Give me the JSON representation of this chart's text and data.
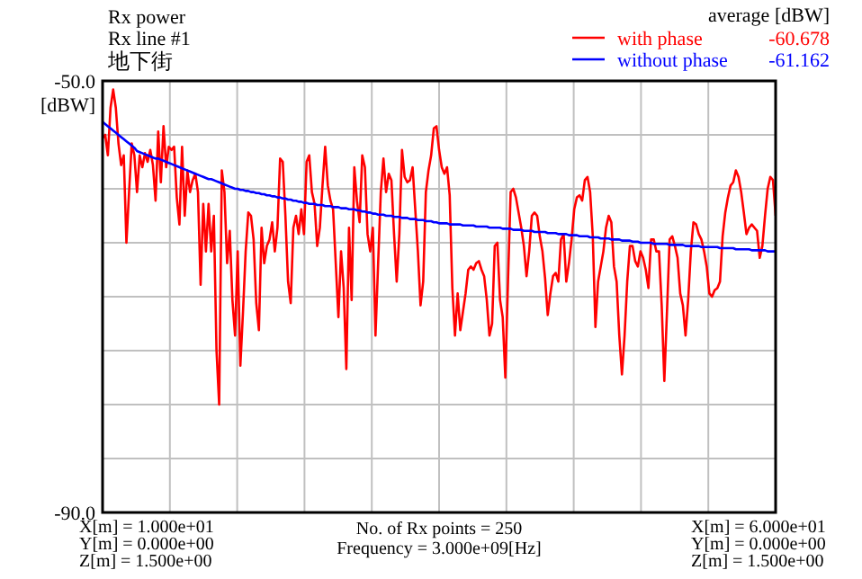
{
  "chart_data": {
    "type": "line",
    "title": "Rx power",
    "subtitle": "Rx line #1",
    "ylabel": "[dBW]",
    "legend_title": "average [dBW]",
    "legend": "top right",
    "grid": true,
    "tick_labels": "y",
    "categories": [
      null,
      null,
      null,
      null,
      null,
      null,
      null,
      null,
      null,
      null,
      null,
      null,
      null,
      null,
      null,
      null,
      null,
      null,
      null,
      null,
      null,
      null,
      null,
      null,
      null,
      null,
      null,
      null,
      null,
      null,
      null,
      null,
      null,
      null,
      null,
      null,
      null,
      null,
      null,
      null,
      null,
      null,
      null,
      null,
      null,
      null,
      null,
      null,
      null,
      null,
      null,
      null,
      null,
      null,
      null,
      null,
      null,
      null,
      null,
      null,
      null,
      null,
      null,
      null,
      null,
      null,
      null,
      null,
      null,
      null,
      null,
      null,
      null,
      null,
      null,
      null,
      null,
      null,
      null,
      null,
      null,
      null,
      null,
      null,
      null,
      null,
      null,
      null,
      null,
      null,
      null,
      null,
      null,
      null,
      null,
      null,
      null,
      null,
      null,
      null,
      null,
      null,
      null,
      null,
      null,
      null,
      null,
      null,
      null,
      null,
      null,
      null,
      null,
      null,
      null,
      null,
      null,
      null,
      null,
      null,
      null,
      null,
      null,
      null,
      null,
      null,
      null,
      null,
      null,
      null,
      null,
      null,
      null,
      null,
      null,
      null,
      null,
      null,
      null,
      null,
      null,
      null,
      null,
      null,
      null,
      null,
      null,
      null,
      null,
      null,
      null,
      null,
      null,
      null,
      null,
      null,
      null,
      null,
      null,
      null,
      null,
      null,
      null,
      null,
      null,
      null,
      null,
      null,
      null,
      null,
      null,
      null,
      null,
      null,
      null,
      null,
      null,
      null,
      null,
      null,
      null,
      null,
      null,
      null,
      null,
      null,
      null,
      null,
      null,
      null,
      null,
      null,
      null,
      null,
      null,
      null,
      null,
      null,
      null,
      null,
      null,
      null,
      null,
      null,
      null,
      null,
      null,
      null,
      null,
      null,
      null,
      null,
      null,
      null,
      null,
      null,
      null,
      null,
      null,
      null,
      null,
      null,
      null,
      null,
      null,
      null,
      null,
      null,
      null,
      null,
      null,
      null,
      null,
      null,
      null,
      null,
      null,
      null,
      null,
      null,
      null,
      null,
      null,
      null,
      null,
      null,
      null,
      null,
      null,
      null,
      null,
      null,
      null,
      null,
      null
    ],
    "ylim": [
      -90,
      -50
    ],
    "yticks": [
      {
        "value": -50,
        "label": "-50.0"
      },
      {
        "value": -55,
        "label": null
      },
      {
        "value": -60,
        "label": null
      },
      {
        "value": -65,
        "label": null
      },
      {
        "value": -70,
        "label": null
      },
      {
        "value": -75,
        "label": null
      },
      {
        "value": -80,
        "label": null
      },
      {
        "value": -85,
        "label": null
      },
      {
        "value": -90,
        "label": "-90.0"
      }
    ],
    "annotations": [
      "地下街",
      "X[m] = 1.000e+01",
      "Y[m] = 0.000e+00",
      "Z[m] = 1.500e+00",
      "No. of Rx points = 250",
      "Frequency = 3.000e+09[Hz]",
      "X[m] = 6.000e+01",
      "Y[m] = 0.000e+00",
      "Z[m] = 1.500e+00",
      "-60.678",
      "-61.162"
    ],
    "series": [
      {
        "name": "with phase",
        "color": "#ff0000",
        "values": [
          -55.3,
          -55.0,
          -56.9,
          -52.5,
          -50.8,
          -52.5,
          -55.8,
          -57.8,
          -56.9,
          -65.0,
          -60.3,
          -55.8,
          -56.9,
          -60.3,
          -56.9,
          -58.0,
          -56.7,
          -57.5,
          -56.4,
          -57.8,
          -61.1,
          -54.7,
          -59.4,
          -54.2,
          -58.0,
          -56.1,
          -56.4,
          -56.1,
          -60.8,
          -63.3,
          -56.1,
          -62.5,
          -58.3,
          -60.3,
          -59.2,
          -58.6,
          -60.3,
          -68.9,
          -61.4,
          -65.8,
          -61.4,
          -65.8,
          -62.5,
          -75.0,
          -80.0,
          -58.3,
          -60.3,
          -66.9,
          -63.9,
          -70.3,
          -73.6,
          -65.8,
          -76.4,
          -71.4,
          -65.8,
          -62.2,
          -62.5,
          -64.7,
          -70.6,
          -73.1,
          -63.6,
          -66.9,
          -65.3,
          -64.7,
          -63.1,
          -65.8,
          -63.6,
          -57.2,
          -57.5,
          -62.5,
          -68.6,
          -70.6,
          -63.6,
          -62.5,
          -64.2,
          -61.9,
          -64.2,
          -57.5,
          -56.9,
          -60.3,
          -61.4,
          -65.3,
          -63.6,
          -59.7,
          -56.1,
          -59.7,
          -61.1,
          -61.9,
          -66.9,
          -71.9,
          -65.8,
          -69.2,
          -76.7,
          -63.6,
          -70.3,
          -58.0,
          -61.1,
          -63.1,
          -56.9,
          -58.0,
          -64.2,
          -65.8,
          -63.6,
          -73.6,
          -66.9,
          -60.3,
          -57.2,
          -60.3,
          -58.6,
          -59.2,
          -64.2,
          -68.6,
          -64.2,
          -56.4,
          -58.9,
          -59.4,
          -59.2,
          -58.0,
          -61.9,
          -65.8,
          -70.8,
          -68.6,
          -60.3,
          -58.3,
          -56.9,
          -54.4,
          -54.2,
          -56.4,
          -58.0,
          -58.6,
          -58.0,
          -60.6,
          -69.2,
          -73.6,
          -69.7,
          -73.1,
          -71.4,
          -69.7,
          -67.5,
          -67.2,
          -67.5,
          -66.9,
          -66.7,
          -67.5,
          -68.1,
          -70.3,
          -73.6,
          -72.5,
          -65.3,
          -65.0,
          -70.3,
          -71.9,
          -77.5,
          -68.6,
          -60.3,
          -60.0,
          -60.8,
          -62.2,
          -63.6,
          -65.3,
          -68.1,
          -65.8,
          -62.5,
          -62.2,
          -62.5,
          -64.4,
          -65.8,
          -68.3,
          -71.7,
          -69.7,
          -68.1,
          -67.8,
          -68.6,
          -64.7,
          -64.2,
          -68.6,
          -66.9,
          -64.7,
          -61.9,
          -60.8,
          -60.6,
          -61.1,
          -59.2,
          -58.9,
          -60.3,
          -64.4,
          -72.8,
          -68.6,
          -67.2,
          -65.8,
          -63.6,
          -62.5,
          -63.1,
          -67.2,
          -68.6,
          -73.6,
          -77.2,
          -73.6,
          -68.6,
          -65.3,
          -65.3,
          -66.7,
          -67.2,
          -65.8,
          -66.4,
          -67.5,
          -69.2,
          -64.7,
          -64.7,
          -65.8,
          -65.8,
          -70.8,
          -77.8,
          -71.4,
          -64.7,
          -64.4,
          -65.3,
          -66.4,
          -69.7,
          -70.8,
          -73.6,
          -70.3,
          -65.8,
          -63.1,
          -63.3,
          -64.2,
          -64.7,
          -65.8,
          -67.2,
          -69.7,
          -70.0,
          -69.4,
          -69.2,
          -68.6,
          -64.4,
          -62.2,
          -60.8,
          -59.7,
          -59.4,
          -58.3,
          -58.9,
          -60.3,
          -62.2,
          -64.2,
          -63.6,
          -63.3,
          -63.6,
          -63.9,
          -66.4,
          -65.3,
          -62.5,
          -60.0,
          -58.9,
          -59.2,
          -62.5
        ]
      },
      {
        "name": "without phase",
        "color": "#0000ff",
        "values": [
          -53.8,
          -54.0,
          -54.2,
          -54.4,
          -54.6,
          -54.8,
          -55.0,
          -55.2,
          -55.4,
          -55.6,
          -55.8,
          -56.0,
          -56.2,
          -56.5,
          -56.6,
          -56.7,
          -56.8,
          -56.9,
          -57.0,
          -57.1,
          -57.2,
          -57.2,
          -57.3,
          -57.4,
          -57.5,
          -57.6,
          -57.7,
          -57.8,
          -57.9,
          -58.0,
          -58.1,
          -58.2,
          -58.3,
          -58.4,
          -58.5,
          -58.6,
          -58.7,
          -58.8,
          -58.9,
          -59.0,
          -59.1,
          -59.1,
          -59.2,
          -59.3,
          -59.4,
          -59.5,
          -59.6,
          -59.7,
          -59.8,
          -59.9,
          -60.0,
          -60.0,
          -60.1,
          -60.1,
          -60.2,
          -60.2,
          -60.3,
          -60.3,
          -60.4,
          -60.4,
          -60.5,
          -60.5,
          -60.6,
          -60.6,
          -60.7,
          -60.7,
          -60.8,
          -60.8,
          -60.9,
          -60.9,
          -61.0,
          -61.0,
          -61.1,
          -61.1,
          -61.2,
          -61.2,
          -61.3,
          -61.3,
          -61.4,
          -61.4,
          -61.4,
          -61.5,
          -61.5,
          -61.5,
          -61.6,
          -61.6,
          -61.6,
          -61.7,
          -61.7,
          -61.7,
          -61.8,
          -61.8,
          -61.8,
          -61.9,
          -61.9,
          -61.9,
          -62.0,
          -62.0,
          -62.1,
          -62.1,
          -62.2,
          -62.2,
          -62.3,
          -62.3,
          -62.4,
          -62.4,
          -62.4,
          -62.5,
          -62.5,
          -62.5,
          -62.6,
          -62.6,
          -62.6,
          -62.7,
          -62.7,
          -62.7,
          -62.8,
          -62.8,
          -62.8,
          -62.9,
          -62.9,
          -62.9,
          -63.0,
          -63.0,
          -63.0,
          -63.1,
          -63.1,
          -63.2,
          -63.2,
          -63.2,
          -63.2,
          -63.3,
          -63.3,
          -63.3,
          -63.3,
          -63.3,
          -63.4,
          -63.4,
          -63.4,
          -63.4,
          -63.4,
          -63.5,
          -63.5,
          -63.5,
          -63.5,
          -63.5,
          -63.6,
          -63.6,
          -63.6,
          -63.6,
          -63.6,
          -63.7,
          -63.7,
          -63.7,
          -63.7,
          -63.8,
          -63.8,
          -63.8,
          -63.8,
          -63.9,
          -63.9,
          -63.9,
          -63.9,
          -64.0,
          -64.0,
          -64.0,
          -64.0,
          -64.0,
          -64.1,
          -64.1,
          -64.1,
          -64.1,
          -64.2,
          -64.2,
          -64.2,
          -64.2,
          -64.3,
          -64.3,
          -64.3,
          -64.3,
          -64.4,
          -64.4,
          -64.4,
          -64.4,
          -64.5,
          -64.5,
          -64.5,
          -64.5,
          -64.6,
          -64.6,
          -64.6,
          -64.6,
          -64.7,
          -64.7,
          -64.7,
          -64.7,
          -64.8,
          -64.8,
          -64.8,
          -64.8,
          -64.9,
          -64.9,
          -64.9,
          -65.0,
          -65.0,
          -65.0,
          -65.0,
          -65.0,
          -65.1,
          -65.1,
          -65.1,
          -65.1,
          -65.1,
          -65.1,
          -65.2,
          -65.2,
          -65.2,
          -65.2,
          -65.2,
          -65.2,
          -65.3,
          -65.3,
          -65.3,
          -65.3,
          -65.3,
          -65.3,
          -65.4,
          -65.4,
          -65.4,
          -65.4,
          -65.4,
          -65.4,
          -65.4,
          -65.5,
          -65.5,
          -65.5,
          -65.5,
          -65.5,
          -65.5,
          -65.6,
          -65.6,
          -65.6,
          -65.6,
          -65.6,
          -65.6,
          -65.7,
          -65.7,
          -65.7,
          -65.7,
          -65.7,
          -65.7,
          -65.8,
          -65.8,
          -65.8,
          -65.8
        ]
      }
    ]
  }
}
